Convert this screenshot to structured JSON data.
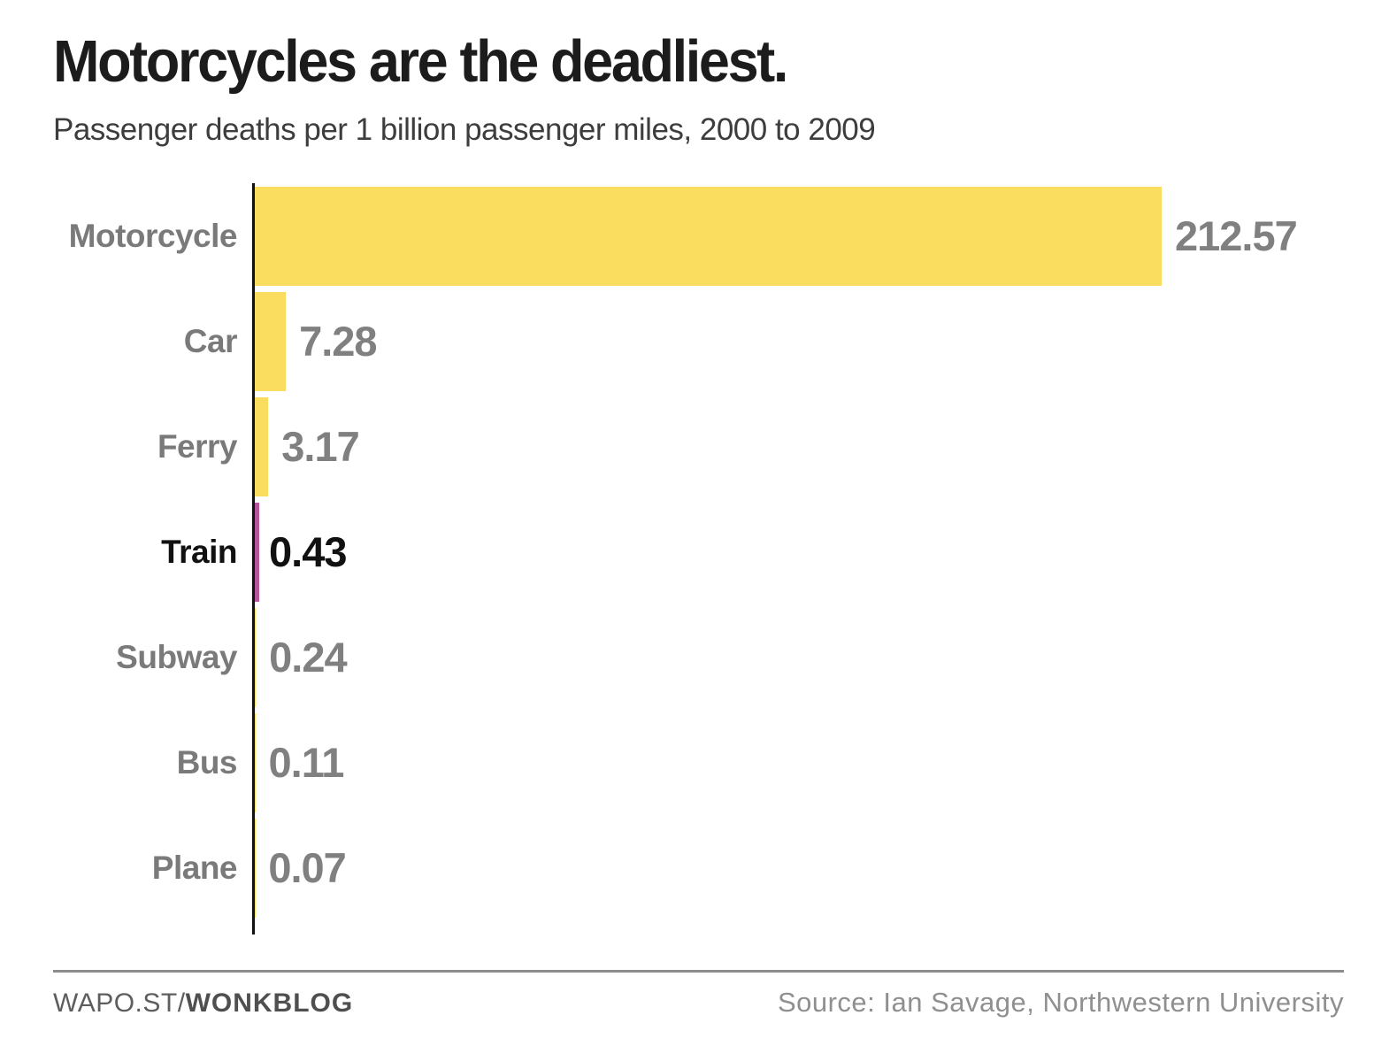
{
  "title": "Motorcycles are the deadliest.",
  "subtitle": "Passenger deaths per 1 billion passenger miles, 2000 to 2009",
  "footer": {
    "left_regular": "WAPO.ST/",
    "left_bold": "WONKBLOG",
    "source": "Source: Ian Savage, Northwestern University"
  },
  "colors": {
    "bar_default": "#fadc5f",
    "bar_highlight": "#b7559a",
    "label_default": "#7a7a7a",
    "label_highlight": "#111111",
    "axis": "#111111"
  },
  "chart_data": {
    "type": "bar",
    "orientation": "horizontal",
    "title": "Motorcycles are the deadliest.",
    "subtitle": "Passenger deaths per 1 billion passenger miles, 2000 to 2009",
    "xlabel": "",
    "ylabel": "",
    "categories": [
      "Motorcycle",
      "Car",
      "Ferry",
      "Train",
      "Subway",
      "Bus",
      "Plane"
    ],
    "values": [
      212.57,
      7.28,
      3.17,
      0.43,
      0.24,
      0.11,
      0.07
    ],
    "value_labels": [
      "212.57",
      "7.28",
      "3.17",
      "0.43",
      "0.24",
      "0.11",
      "0.07"
    ],
    "highlighted_category": "Train",
    "xlim": [
      0,
      212.57
    ],
    "grid": false,
    "legend": false,
    "value_labels_position": "right-of-bar"
  }
}
